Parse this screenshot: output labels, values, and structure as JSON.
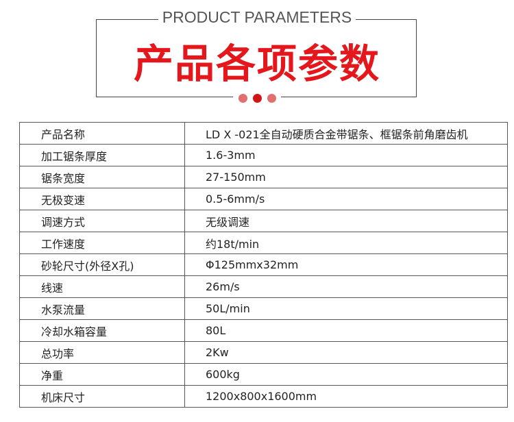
{
  "header": {
    "en_title": "PRODUCT PARAMETERS",
    "cn_title": "产品各项参数",
    "accent_color": "#e3171c",
    "dot_colors": [
      "#e07070",
      "#d01515",
      "#e07070"
    ]
  },
  "params": [
    {
      "label": "产品名称",
      "value": "LD X -021全自动硬质合金带锯条、框锯条前角磨齿机"
    },
    {
      "label": "加工锯条厚度",
      "value": "1.6-3mm"
    },
    {
      "label": "锯条宽度",
      "value": "27-150mm"
    },
    {
      "label": "无极变速",
      "value": "0.5-6mm/s"
    },
    {
      "label": "调速方式",
      "value": "无级调速"
    },
    {
      "label": "工作速度",
      "value": "约18t/min"
    },
    {
      "label": "砂轮尺寸(外径X孔)",
      "value": "Φ125mmx32mm"
    },
    {
      "label": "线速",
      "value": "26m/s"
    },
    {
      "label": "水泵流量",
      "value": "50L/min"
    },
    {
      "label": "冷却水箱容量",
      "value": "80L"
    },
    {
      "label": "总功率",
      "value": "2Kw"
    },
    {
      "label": "净重",
      "value": "600kg"
    },
    {
      "label": "机床尺寸",
      "value": "1200x800x1600mm"
    }
  ]
}
